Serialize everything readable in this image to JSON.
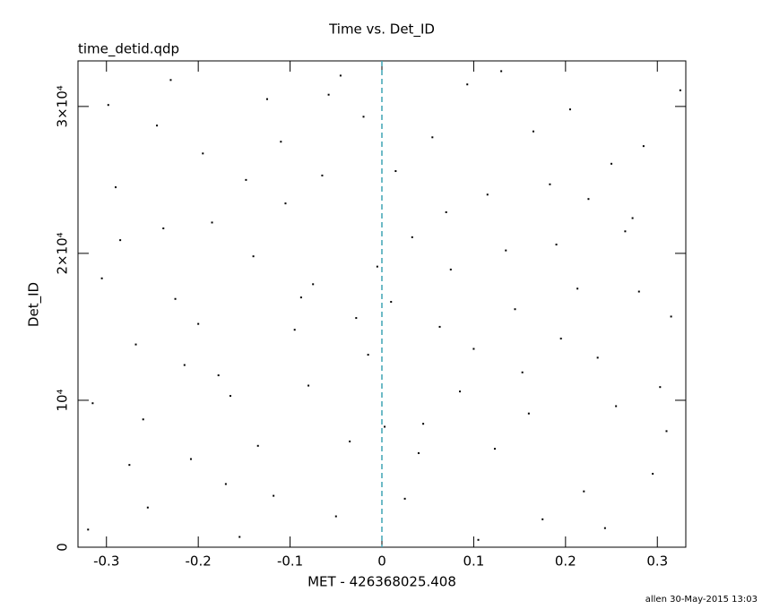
{
  "chart_data": {
    "type": "scatter",
    "title": "Time vs. Det_ID",
    "subtitle": "time_detid.qdp",
    "xlabel": "MET - 426368025.408",
    "ylabel": "Det_ID",
    "footer": "allen 30-May-2015 13:03",
    "xlim": [
      -0.331,
      0.331
    ],
    "ylim": [
      0,
      33100
    ],
    "xticks": [
      -0.3,
      -0.2,
      -0.1,
      0,
      0.1,
      0.2,
      0.3
    ],
    "yticks": [
      0,
      {
        "value": 10000,
        "label": "10⁴"
      },
      {
        "value": 20000,
        "label": "2×10⁴"
      },
      {
        "value": 30000,
        "label": "3×10⁴"
      }
    ],
    "vline": 0,
    "vline_color": "#3fa3b3",
    "series": [
      {
        "color": "#000000",
        "x": [
          -0.32,
          -0.29,
          -0.26,
          -0.23,
          -0.2,
          -0.17,
          -0.14,
          -0.11,
          -0.08,
          -0.05,
          -0.02,
          0.01,
          0.04,
          0.07,
          0.1,
          0.13,
          0.16,
          0.19,
          0.22,
          0.25,
          0.28,
          0.31,
          -0.305,
          -0.275,
          -0.245,
          -0.215,
          -0.185,
          -0.155,
          -0.125,
          -0.095,
          -0.065,
          -0.035,
          -0.005,
          0.025,
          0.055,
          0.085,
          0.115,
          0.145,
          0.175,
          0.205,
          0.235,
          0.265,
          0.295,
          0.325,
          -0.315,
          -0.285,
          -0.255,
          -0.225,
          -0.195,
          -0.165,
          -0.135,
          -0.105,
          -0.075,
          -0.045,
          -0.015,
          0.015,
          0.045,
          0.075,
          0.105,
          0.135,
          0.165,
          0.195,
          0.225,
          0.255,
          0.285,
          0.315,
          -0.298,
          -0.268,
          -0.238,
          -0.208,
          -0.178,
          -0.148,
          -0.118,
          -0.088,
          -0.058,
          -0.028,
          0.003,
          0.033,
          0.063,
          0.093,
          0.123,
          0.153,
          0.183,
          0.213,
          0.243,
          0.273,
          0.303
        ],
        "values": [
          1200,
          24500,
          8700,
          31800,
          15200,
          4300,
          19800,
          27600,
          11000,
          2100,
          29300,
          16700,
          6400,
          22800,
          13500,
          32400,
          9100,
          20600,
          3800,
          26100,
          17400,
          7900,
          18300,
          5600,
          28700,
          12400,
          22100,
          700,
          30500,
          14800,
          25300,
          7200,
          19100,
          3300,
          27900,
          10600,
          24000,
          16200,
          1900,
          29800,
          12900,
          21500,
          5000,
          31100,
          9800,
          20900,
          2700,
          16900,
          26800,
          10300,
          6900,
          23400,
          17900,
          32100,
          13100,
          25600,
          8400,
          18900,
          500,
          20200,
          28300,
          14200,
          23700,
          9600,
          27300,
          15700,
          30100,
          13800,
          21700,
          6000,
          11700,
          25000,
          3500,
          17000,
          30800,
          15600,
          8200,
          21100,
          15000,
          31500,
          6700,
          11900,
          24700,
          17600,
          1300,
          22400,
          10900
        ]
      }
    ]
  }
}
